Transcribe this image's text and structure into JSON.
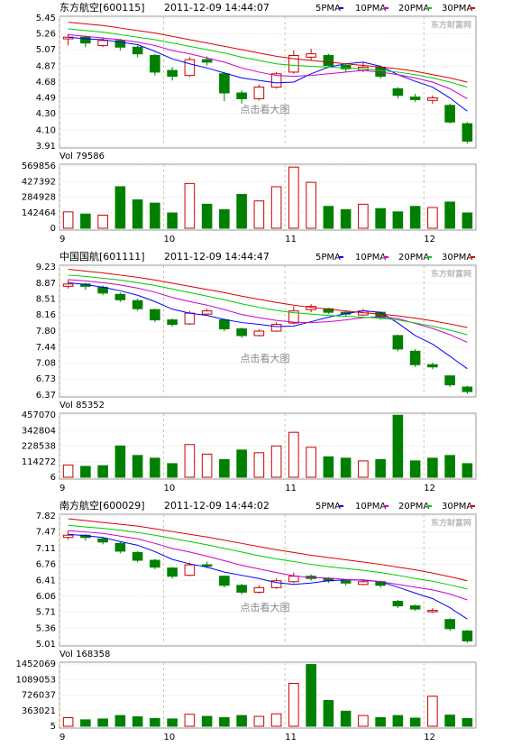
{
  "chart_data": [
    {
      "type": "candlestick",
      "title": "东方航空[600115]",
      "subtitle": "2011-12-09 14:44:07",
      "annotation": "点击看大图",
      "watermark": "东方财富网",
      "categories": [
        "9",
        null,
        null,
        null,
        null,
        null,
        "10",
        null,
        null,
        null,
        null,
        null,
        null,
        "11",
        null,
        null,
        null,
        null,
        null,
        null,
        null,
        "12",
        null,
        null
      ],
      "up_color": "#cc0000",
      "down_color": "#008000",
      "ohlc": [
        [
          5.2,
          5.26,
          5.12,
          5.22
        ],
        [
          5.22,
          5.24,
          5.1,
          5.15
        ],
        [
          5.12,
          5.22,
          5.1,
          5.18
        ],
        [
          5.18,
          5.2,
          5.06,
          5.1
        ],
        [
          5.1,
          5.12,
          4.98,
          5.02
        ],
        [
          5.0,
          5.02,
          4.76,
          4.8
        ],
        [
          4.82,
          4.86,
          4.7,
          4.75
        ],
        [
          4.76,
          4.98,
          4.74,
          4.95
        ],
        [
          4.95,
          4.99,
          4.88,
          4.92
        ],
        [
          4.78,
          4.8,
          4.45,
          4.55
        ],
        [
          4.55,
          4.58,
          4.42,
          4.48
        ],
        [
          4.48,
          4.65,
          4.46,
          4.62
        ],
        [
          4.62,
          4.8,
          4.6,
          4.78
        ],
        [
          4.8,
          5.06,
          4.78,
          5.0
        ],
        [
          4.98,
          5.08,
          4.94,
          5.02
        ],
        [
          5.0,
          5.02,
          4.86,
          4.88
        ],
        [
          4.88,
          4.9,
          4.8,
          4.84
        ],
        [
          4.82,
          4.92,
          4.8,
          4.86
        ],
        [
          4.86,
          4.88,
          4.72,
          4.75
        ],
        [
          4.6,
          4.62,
          4.48,
          4.52
        ],
        [
          4.5,
          4.54,
          4.44,
          4.47
        ],
        [
          4.46,
          4.52,
          4.42,
          4.49
        ],
        [
          4.4,
          4.42,
          4.18,
          4.2
        ],
        [
          4.18,
          4.2,
          3.94,
          3.97
        ]
      ],
      "series": [
        {
          "name": "5PMA",
          "color": "#0000ff",
          "values": [
            5.22,
            5.2,
            5.19,
            5.16,
            5.13,
            5.05,
            4.96,
            4.9,
            4.85,
            4.79,
            4.73,
            4.7,
            4.67,
            4.68,
            4.78,
            4.86,
            4.9,
            4.92,
            4.87,
            4.77,
            4.69,
            4.62,
            4.49,
            4.33
          ]
        },
        {
          "name": "10PMA",
          "color": "#cc00cc",
          "values": [
            5.25,
            5.23,
            5.21,
            5.19,
            5.16,
            5.12,
            5.06,
            5.02,
            4.97,
            4.92,
            4.85,
            4.8,
            4.76,
            4.75,
            4.76,
            4.78,
            4.8,
            4.82,
            4.8,
            4.77,
            4.73,
            4.68,
            4.6,
            4.48
          ]
        },
        {
          "name": "20PMA",
          "color": "#00cc00",
          "values": [
            5.32,
            5.3,
            5.28,
            5.25,
            5.22,
            5.19,
            5.15,
            5.11,
            5.07,
            5.03,
            4.98,
            4.94,
            4.9,
            4.88,
            4.87,
            4.86,
            4.85,
            4.84,
            4.82,
            4.8,
            4.77,
            4.73,
            4.68,
            4.62
          ]
        },
        {
          "name": "30PMA",
          "color": "#dd0000",
          "values": [
            5.4,
            5.38,
            5.36,
            5.33,
            5.3,
            5.27,
            5.23,
            5.19,
            5.15,
            5.11,
            5.07,
            5.03,
            4.99,
            4.96,
            4.94,
            4.92,
            4.9,
            4.88,
            4.86,
            4.84,
            4.81,
            4.77,
            4.73,
            4.68
          ]
        }
      ],
      "ylim": [
        3.91,
        5.45
      ],
      "yticks": [
        5.45,
        5.26,
        5.07,
        4.87,
        4.68,
        4.49,
        {
          "value": 4.3,
          "label": "4.30"
        },
        {
          "value": 4.1,
          "label": "4.10"
        },
        3.91
      ],
      "volume": {
        "title": "Vol 79586",
        "values": [
          150000,
          130000,
          120000,
          380000,
          260000,
          230000,
          140000,
          410000,
          220000,
          170000,
          310000,
          250000,
          380000,
          560000,
          420000,
          200000,
          170000,
          220000,
          180000,
          150000,
          200000,
          190000,
          240000,
          140000
        ],
        "ylim": [
          0,
          569856
        ],
        "yticks": [
          569856,
          427392,
          284928,
          142464,
          0
        ]
      }
    },
    {
      "type": "candlestick",
      "title": "中国国航[601111]",
      "subtitle": "2011-12-09 14:44:47",
      "annotation": "点击看大图",
      "watermark": "东方财富网",
      "categories": [
        "9",
        null,
        null,
        null,
        null,
        null,
        "10",
        null,
        null,
        null,
        null,
        null,
        null,
        "11",
        null,
        null,
        null,
        null,
        null,
        null,
        null,
        "12",
        null,
        null
      ],
      "up_color": "#cc0000",
      "down_color": "#008000",
      "ohlc": [
        [
          8.8,
          8.95,
          8.75,
          8.85
        ],
        [
          8.85,
          8.88,
          8.72,
          8.8
        ],
        [
          8.78,
          8.82,
          8.6,
          8.65
        ],
        [
          8.62,
          8.66,
          8.45,
          8.5
        ],
        [
          8.48,
          8.52,
          8.25,
          8.3
        ],
        [
          8.28,
          8.3,
          8.0,
          8.05
        ],
        [
          8.05,
          8.08,
          7.9,
          7.95
        ],
        [
          7.96,
          8.25,
          7.94,
          8.2
        ],
        [
          8.18,
          8.3,
          8.15,
          8.25
        ],
        [
          8.05,
          8.08,
          7.8,
          7.85
        ],
        [
          7.85,
          7.88,
          7.65,
          7.7
        ],
        [
          7.7,
          7.84,
          7.68,
          7.8
        ],
        [
          7.8,
          8.0,
          7.78,
          7.95
        ],
        [
          7.98,
          8.35,
          7.95,
          8.25
        ],
        [
          8.28,
          8.4,
          8.22,
          8.35
        ],
        [
          8.3,
          8.32,
          8.18,
          8.22
        ],
        [
          8.22,
          8.26,
          8.12,
          8.18
        ],
        [
          8.16,
          8.3,
          8.14,
          8.25
        ],
        [
          8.22,
          8.24,
          8.05,
          8.1
        ],
        [
          7.7,
          7.72,
          7.35,
          7.4
        ],
        [
          7.35,
          7.4,
          7.0,
          7.05
        ],
        [
          7.05,
          7.1,
          6.95,
          7.0
        ],
        [
          6.8,
          6.82,
          6.55,
          6.6
        ],
        [
          6.55,
          6.58,
          6.4,
          6.45
        ]
      ],
      "series": [
        {
          "name": "5PMA",
          "color": "#0000ff",
          "values": [
            8.88,
            8.84,
            8.78,
            8.7,
            8.6,
            8.46,
            8.29,
            8.2,
            8.15,
            8.06,
            7.99,
            7.95,
            7.9,
            7.91,
            8.01,
            8.11,
            8.19,
            8.25,
            8.22,
            7.98,
            7.7,
            7.51,
            7.24,
            6.96
          ]
        },
        {
          "name": "10PMA",
          "color": "#cc00cc",
          "values": [
            8.95,
            8.92,
            8.88,
            8.83,
            8.76,
            8.67,
            8.55,
            8.46,
            8.38,
            8.28,
            8.17,
            8.1,
            8.04,
            8.0,
            7.99,
            8.01,
            8.05,
            8.1,
            8.12,
            8.08,
            7.97,
            7.86,
            7.72,
            7.55
          ]
        },
        {
          "name": "20PMA",
          "color": "#00cc00",
          "values": [
            9.05,
            9.02,
            8.98,
            8.94,
            8.88,
            8.82,
            8.74,
            8.66,
            8.58,
            8.5,
            8.41,
            8.33,
            8.26,
            8.21,
            8.18,
            8.15,
            8.13,
            8.11,
            8.09,
            8.05,
            7.98,
            7.91,
            7.82,
            7.72
          ]
        },
        {
          "name": "30PMA",
          "color": "#dd0000",
          "values": [
            9.18,
            9.14,
            9.1,
            9.05,
            9.0,
            8.94,
            8.87,
            8.8,
            8.73,
            8.66,
            8.58,
            8.51,
            8.44,
            8.38,
            8.33,
            8.29,
            8.25,
            8.21,
            8.18,
            8.14,
            8.09,
            8.03,
            7.96,
            7.88
          ]
        }
      ],
      "ylim": [
        6.37,
        9.23
      ],
      "yticks": [
        9.23,
        8.87,
        8.51,
        8.16,
        {
          "value": 7.8,
          "label": "7.80"
        },
        7.44,
        7.08,
        6.73,
        6.37
      ],
      "volume": {
        "title": "Vol 85352",
        "values": [
          90000,
          80000,
          85000,
          230000,
          160000,
          140000,
          100000,
          240000,
          170000,
          130000,
          200000,
          180000,
          230000,
          330000,
          220000,
          150000,
          140000,
          120000,
          130000,
          455000,
          120000,
          140000,
          160000,
          100000
        ],
        "ylim": [
          6,
          457070
        ],
        "yticks": [
          457070,
          342804,
          228538,
          114272,
          6
        ]
      }
    },
    {
      "type": "candlestick",
      "title": "南方航空[600029]",
      "subtitle": "2011-12-09 14:44:02",
      "annotation": "点击看大图",
      "watermark": "东方财富网",
      "categories": [
        "9",
        null,
        null,
        null,
        null,
        null,
        "10",
        null,
        null,
        null,
        null,
        null,
        null,
        "11",
        null,
        null,
        null,
        null,
        null,
        null,
        null,
        "12",
        null,
        null
      ],
      "up_color": "#cc0000",
      "down_color": "#008000",
      "ohlc": [
        [
          7.35,
          7.5,
          7.3,
          7.4
        ],
        [
          7.4,
          7.42,
          7.28,
          7.35
        ],
        [
          7.32,
          7.36,
          7.2,
          7.25
        ],
        [
          7.22,
          7.25,
          7.0,
          7.05
        ],
        [
          7.02,
          7.05,
          6.8,
          6.85
        ],
        [
          6.85,
          6.88,
          6.65,
          6.7
        ],
        [
          6.68,
          6.7,
          6.45,
          6.5
        ],
        [
          6.52,
          6.8,
          6.5,
          6.75
        ],
        [
          6.75,
          6.82,
          6.68,
          6.72
        ],
        [
          6.5,
          6.52,
          6.25,
          6.3
        ],
        [
          6.3,
          6.33,
          6.1,
          6.15
        ],
        [
          6.15,
          6.3,
          6.12,
          6.25
        ],
        [
          6.25,
          6.45,
          6.22,
          6.4
        ],
        [
          6.38,
          6.58,
          6.35,
          6.5
        ],
        [
          6.5,
          6.54,
          6.4,
          6.45
        ],
        [
          6.45,
          6.48,
          6.35,
          6.4
        ],
        [
          6.4,
          6.42,
          6.3,
          6.35
        ],
        [
          6.32,
          6.42,
          6.3,
          6.38
        ],
        [
          6.38,
          6.4,
          6.25,
          6.3
        ],
        [
          5.95,
          5.98,
          5.8,
          5.85
        ],
        [
          5.85,
          5.88,
          5.74,
          5.78
        ],
        [
          5.72,
          5.8,
          5.7,
          5.75
        ],
        [
          5.55,
          5.58,
          5.3,
          5.35
        ],
        [
          5.3,
          5.32,
          5.04,
          5.08
        ]
      ],
      "series": [
        {
          "name": "5PMA",
          "color": "#0000ff",
          "values": [
            7.42,
            7.39,
            7.35,
            7.26,
            7.18,
            7.04,
            6.87,
            6.77,
            6.7,
            6.59,
            6.52,
            6.45,
            6.36,
            6.32,
            6.35,
            6.4,
            6.42,
            6.42,
            6.38,
            6.26,
            6.13,
            6.01,
            5.81,
            5.56
          ]
        },
        {
          "name": "10PMA",
          "color": "#cc00cc",
          "values": [
            7.5,
            7.47,
            7.44,
            7.38,
            7.32,
            7.22,
            7.11,
            7.03,
            6.94,
            6.84,
            6.74,
            6.66,
            6.58,
            6.51,
            6.47,
            6.46,
            6.43,
            6.41,
            6.38,
            6.32,
            6.26,
            6.2,
            6.11,
            5.98
          ]
        },
        {
          "name": "20PMA",
          "color": "#00cc00",
          "values": [
            7.62,
            7.58,
            7.55,
            7.51,
            7.46,
            7.4,
            7.33,
            7.26,
            7.19,
            7.11,
            7.03,
            6.95,
            6.88,
            6.82,
            6.76,
            6.71,
            6.67,
            6.63,
            6.58,
            6.52,
            6.45,
            6.39,
            6.31,
            6.22
          ]
        },
        {
          "name": "30PMA",
          "color": "#dd0000",
          "values": [
            7.76,
            7.72,
            7.68,
            7.64,
            7.6,
            7.54,
            7.48,
            7.42,
            7.36,
            7.29,
            7.22,
            7.15,
            7.08,
            7.02,
            6.96,
            6.91,
            6.86,
            6.81,
            6.76,
            6.7,
            6.64,
            6.57,
            6.49,
            6.4
          ]
        }
      ],
      "ylim": [
        5.01,
        7.82
      ],
      "yticks": [
        7.82,
        7.47,
        7.11,
        6.76,
        6.41,
        6.06,
        5.71,
        5.36,
        5.01
      ],
      "volume": {
        "title": "Vol 168358",
        "values": [
          200000,
          150000,
          170000,
          250000,
          220000,
          180000,
          170000,
          280000,
          230000,
          200000,
          250000,
          230000,
          290000,
          1000000,
          1440000,
          600000,
          350000,
          250000,
          200000,
          250000,
          190000,
          700000,
          260000,
          180000
        ],
        "ylim": [
          5,
          1452069
        ],
        "yticks": [
          1452069,
          1089053,
          726037,
          363021,
          5
        ]
      }
    }
  ]
}
